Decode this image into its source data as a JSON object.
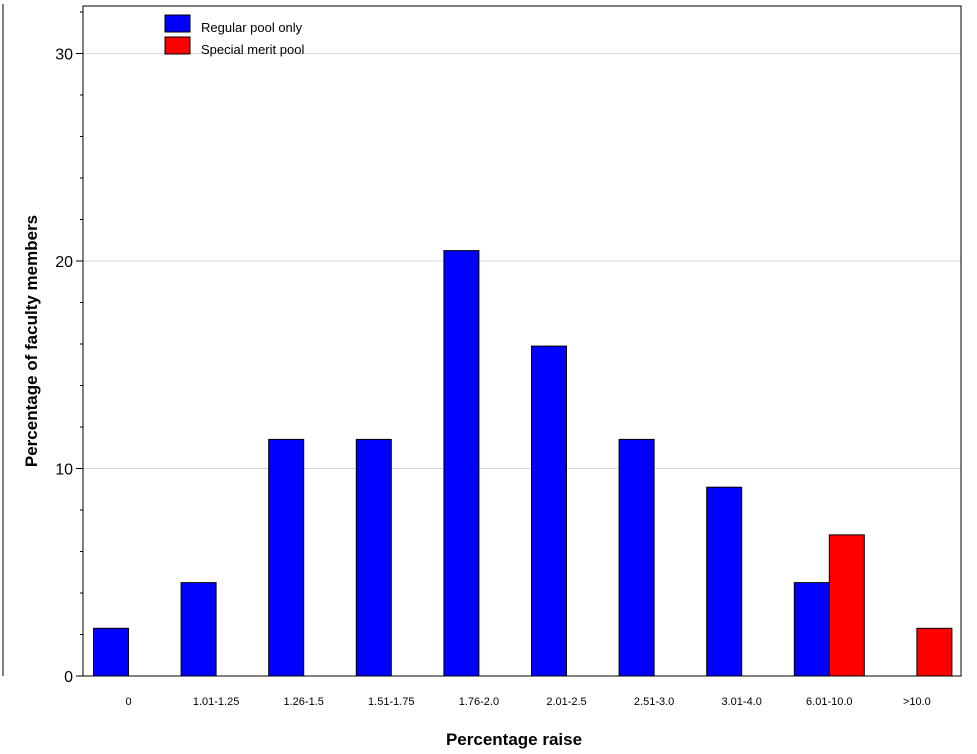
{
  "chart_data": {
    "type": "bar",
    "xlabel": "Percentage raise",
    "ylabel": "Percentage of faculty members",
    "ylim": [
      0,
      32
    ],
    "yticks": [
      0,
      10,
      20,
      30
    ],
    "grid": "horizontal",
    "legend_position": "top-left",
    "categories": [
      "0",
      "1.01-1.25",
      "1.26-1.5",
      "1.51-1.75",
      "1.76-2.0",
      "2.01-2.5",
      "2.51-3.0",
      "3.01-4.0",
      "6.01-10.0",
      ">10.0"
    ],
    "series": [
      {
        "name": "Regular pool only",
        "color": "#0000ff",
        "values": [
          2.3,
          4.5,
          11.4,
          11.4,
          20.5,
          15.9,
          11.4,
          9.1,
          4.5,
          0
        ]
      },
      {
        "name": "Special merit pool",
        "color": "#ff0000",
        "values": [
          0,
          0,
          0,
          0,
          0,
          0,
          0,
          0,
          6.8,
          2.3
        ]
      }
    ]
  }
}
